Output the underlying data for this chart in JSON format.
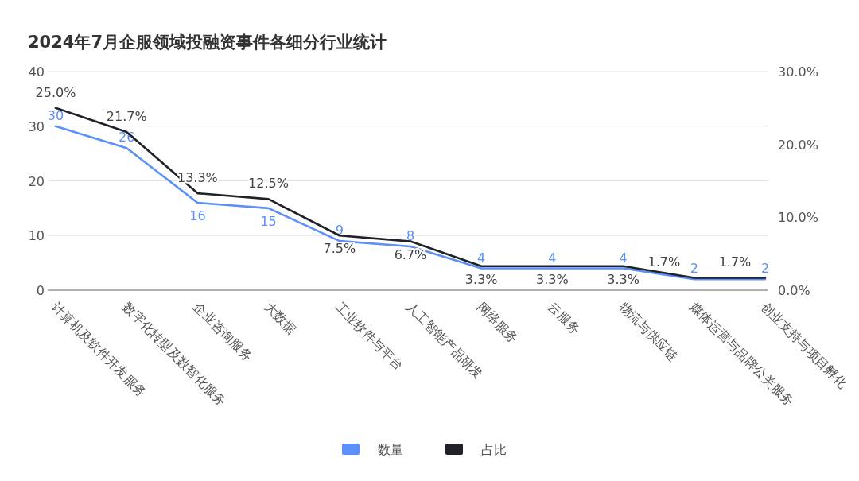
{
  "chart_data": {
    "type": "line",
    "title": "2024年7月企服领域投融资事件各细分行业统计",
    "categories": [
      "计算机及软件开发服务",
      "数字化转型及数智化服务",
      "企业咨询服务",
      "大数据",
      "工业软件与平台",
      "人工智能产品研发",
      "网络服务",
      "云服务",
      "物流与供应链",
      "媒体运营与品牌公关服务",
      "创业支持与项目孵化"
    ],
    "series": [
      {
        "name": "数量",
        "color": "#5b8ff9",
        "values": [
          30,
          26,
          16,
          15,
          9,
          8,
          4,
          4,
          4,
          2,
          2
        ],
        "value_labels": [
          "30",
          "26",
          "16",
          "15",
          "9",
          "8",
          "4",
          "4",
          "4",
          "2",
          "2"
        ]
      },
      {
        "name": "占比",
        "color": "#1f2329",
        "axis": "y2",
        "values": [
          25.0,
          21.7,
          13.3,
          12.5,
          7.5,
          6.7,
          3.3,
          3.3,
          3.3,
          1.7,
          1.7
        ],
        "value_labels": [
          "25.0%",
          "21.7%",
          "13.3%",
          "12.5%",
          "7.5%",
          "6.7%",
          "3.3%",
          "3.3%",
          "3.3%",
          "1.7%",
          "1.7%"
        ]
      }
    ],
    "ylim": [
      0,
      40
    ],
    "yticks": [
      0,
      10,
      20,
      30,
      40
    ],
    "y2lim": [
      0,
      30
    ],
    "y2ticks": [
      {
        "value": 0,
        "label": "0.0%"
      },
      {
        "value": 10,
        "label": "10.0%"
      },
      {
        "value": 20,
        "label": "20.0%"
      },
      {
        "value": 30,
        "label": "30.0%"
      }
    ],
    "grid": "y",
    "legend": "bottom",
    "marker": "none",
    "line_style": "solid"
  }
}
